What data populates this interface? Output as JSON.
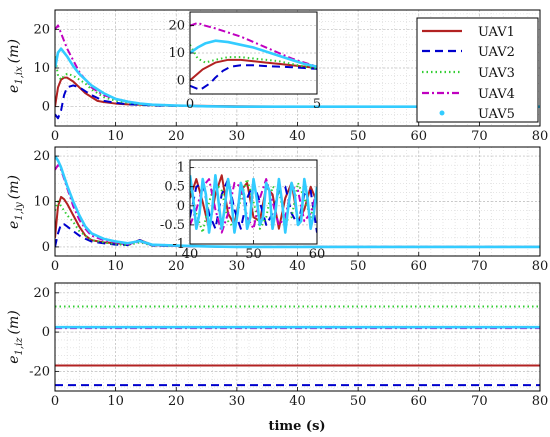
{
  "chart_data": [
    {
      "type": "line",
      "panel": "top",
      "ylabel": "e1,ix (m)",
      "ylabel_main": "e",
      "ylabel_sub": "1,ix",
      "ylabel_unit": "(m)",
      "xlim": [
        0,
        80
      ],
      "ylim": [
        -5,
        25
      ],
      "xticks": [
        0,
        10,
        20,
        30,
        40,
        50,
        60,
        70,
        80
      ],
      "yticks": [
        0,
        10,
        20
      ],
      "grid": true,
      "series": [
        {
          "name": "UAV1",
          "x": [
            0,
            0.5,
            1,
            1.5,
            2,
            3,
            4,
            5,
            6,
            7,
            8,
            10,
            12,
            14,
            16,
            18,
            20,
            25,
            30,
            40,
            50,
            60,
            70,
            80
          ],
          "y": [
            0,
            5,
            7,
            7.5,
            7.5,
            6.5,
            5,
            3.5,
            2.5,
            1.5,
            1.2,
            0.8,
            0.6,
            0.5,
            0.4,
            0.3,
            0.3,
            0.2,
            0.1,
            0,
            0,
            0,
            0,
            0
          ]
        },
        {
          "name": "UAV2",
          "x": [
            0,
            0.5,
            1,
            1.5,
            2,
            3,
            4,
            5,
            6,
            8,
            10,
            12,
            14,
            16,
            20,
            25,
            30,
            40,
            50,
            60,
            70,
            80
          ],
          "y": [
            -2,
            -3,
            -1,
            3,
            5,
            5.5,
            5,
            4,
            3,
            1.5,
            1,
            0.6,
            0.5,
            0.3,
            0.2,
            0.1,
            0,
            0,
            0,
            0,
            0,
            0
          ]
        },
        {
          "name": "UAV3",
          "x": [
            0,
            0.5,
            1,
            1.5,
            2,
            3,
            4,
            5,
            6,
            8,
            10,
            12,
            14,
            16,
            20,
            25,
            30,
            40,
            50,
            60,
            70,
            80
          ],
          "y": [
            13,
            8,
            7,
            8,
            8.5,
            8,
            7,
            6,
            4.5,
            2.5,
            1.5,
            1,
            0.6,
            0.4,
            0.2,
            0.1,
            0,
            0,
            0,
            0,
            0,
            0
          ]
        },
        {
          "name": "UAV4",
          "x": [
            0,
            0.5,
            1,
            1.5,
            2,
            3,
            4,
            5,
            6,
            8,
            10,
            12,
            14,
            16,
            20,
            25,
            30,
            40,
            50,
            60,
            70,
            80
          ],
          "y": [
            20,
            21,
            19,
            17,
            15,
            12,
            9,
            7,
            5,
            3,
            2,
            1.3,
            0.8,
            0.5,
            0.3,
            0.1,
            0,
            0,
            0,
            0,
            0,
            0
          ]
        },
        {
          "name": "UAV5",
          "x": [
            0,
            0.5,
            1,
            1.5,
            2,
            3,
            4,
            5,
            6,
            8,
            10,
            12,
            14,
            16,
            20,
            25,
            30,
            40,
            50,
            60,
            70,
            80
          ],
          "y": [
            10,
            14,
            15,
            14,
            13,
            10.5,
            8.5,
            7,
            5.5,
            3.5,
            2,
            1.3,
            0.8,
            0.5,
            0.3,
            0.1,
            0,
            0,
            0,
            0,
            0,
            0
          ]
        }
      ],
      "inset": {
        "xlim": [
          0,
          5
        ],
        "ylim": [
          -5,
          25
        ],
        "xticks": [
          0,
          5
        ],
        "yticks": [
          0,
          10,
          20
        ],
        "series": [
          {
            "name": "UAV1",
            "x": [
              0,
              0.5,
              1,
              1.5,
              2,
              2.5,
              3,
              3.5,
              4,
              4.5,
              5
            ],
            "y": [
              0,
              4,
              6.5,
              7.5,
              7.5,
              7,
              6.5,
              6,
              5.5,
              5,
              4.5
            ]
          },
          {
            "name": "UAV2",
            "x": [
              0,
              0.4,
              0.8,
              1,
              1.3,
              1.6,
              2,
              2.5,
              3,
              3.5,
              4,
              4.5,
              5
            ],
            "y": [
              -2,
              -3.5,
              -1,
              1,
              3.5,
              5,
              5.5,
              5.5,
              5.2,
              5,
              4.8,
              4.5,
              4.2
            ]
          },
          {
            "name": "UAV3",
            "x": [
              0,
              0.3,
              0.6,
              1,
              1.5,
              2,
              2.5,
              3,
              3.5,
              4,
              4.5,
              5
            ],
            "y": [
              13,
              8,
              6.5,
              7.5,
              8.5,
              8.5,
              8,
              7.5,
              7,
              6,
              5,
              4.3
            ]
          },
          {
            "name": "UAV4",
            "x": [
              0,
              0.3,
              0.6,
              1,
              1.5,
              2,
              2.5,
              3,
              3.5,
              4,
              4.5,
              5
            ],
            "y": [
              20,
              21,
              20,
              19,
              17.5,
              16,
              14,
              12,
              10,
              8,
              6.5,
              5
            ]
          },
          {
            "name": "UAV5",
            "x": [
              0,
              0.3,
              0.6,
              1,
              1.5,
              2,
              2.5,
              3,
              3.5,
              4,
              4.5,
              5
            ],
            "y": [
              10,
              12,
              13.5,
              14.5,
              14,
              13,
              12,
              10.5,
              9,
              7.5,
              6,
              5
            ]
          }
        ]
      },
      "legend": {
        "placement": "top-right",
        "entries": [
          "UAV1",
          "UAV2",
          "UAV3",
          "UAV4",
          "UAV5"
        ]
      }
    },
    {
      "type": "line",
      "panel": "middle",
      "ylabel": "e1,iy (m)",
      "ylabel_main": "e",
      "ylabel_sub": "1,iy",
      "ylabel_unit": "(m)",
      "xlim": [
        0,
        80
      ],
      "ylim": [
        -2,
        22
      ],
      "xticks": [
        0,
        10,
        20,
        30,
        40,
        50,
        60,
        70,
        80
      ],
      "yticks": [
        0,
        10,
        20
      ],
      "grid": true,
      "series": [
        {
          "name": "UAV1",
          "x": [
            0,
            0.5,
            1,
            1.5,
            2,
            3,
            4,
            5,
            6,
            8,
            10,
            12,
            14,
            16,
            18,
            20,
            25,
            30,
            40,
            50,
            60,
            70,
            80
          ],
          "y": [
            2,
            9,
            11,
            10.5,
            9.5,
            7,
            4.5,
            2.5,
            1.5,
            1,
            0.8,
            0.6,
            1.5,
            0.5,
            0.3,
            0.2,
            0.1,
            0,
            0,
            0,
            0,
            0,
            0
          ]
        },
        {
          "name": "UAV2",
          "x": [
            0,
            0.5,
            1,
            1.5,
            2,
            3,
            4,
            5,
            6,
            8,
            10,
            12,
            14,
            16,
            20,
            25,
            30,
            40,
            50,
            60,
            70,
            80
          ],
          "y": [
            0,
            3,
            5,
            5,
            4.5,
            3.5,
            2.5,
            1.8,
            1.2,
            0.8,
            0.5,
            0.4,
            1.5,
            0.3,
            0.2,
            0.1,
            0,
            0,
            0,
            0,
            0,
            0
          ]
        },
        {
          "name": "UAV3",
          "x": [
            0,
            0.5,
            1,
            1.5,
            2,
            3,
            4,
            5,
            6,
            8,
            10,
            12,
            14,
            16,
            20,
            25,
            30,
            40,
            50,
            60,
            70,
            80
          ],
          "y": [
            8,
            10,
            9,
            8,
            7,
            5.5,
            3.5,
            2.5,
            1.5,
            1,
            0.6,
            0.4,
            1,
            0.3,
            0.2,
            0.1,
            0,
            0,
            0,
            0,
            0,
            0
          ]
        },
        {
          "name": "UAV4",
          "x": [
            0,
            0.5,
            1,
            1.5,
            2,
            3,
            4,
            5,
            6,
            8,
            10,
            12,
            14,
            16,
            20,
            25,
            30,
            40,
            50,
            60,
            70,
            80
          ],
          "y": [
            17,
            18,
            17,
            15,
            13,
            9,
            6,
            4,
            2.5,
            1.5,
            1,
            0.6,
            1.2,
            0.4,
            0.2,
            0.1,
            0,
            0,
            0,
            0,
            0,
            0
          ]
        },
        {
          "name": "UAV5",
          "x": [
            0,
            0.5,
            1,
            1.5,
            2,
            3,
            4,
            5,
            6,
            8,
            10,
            12,
            14,
            16,
            20,
            25,
            30,
            40,
            50,
            60,
            70,
            80
          ],
          "y": [
            20,
            19,
            17.5,
            15.5,
            13.5,
            10,
            7,
            4.5,
            3,
            1.8,
            1.2,
            0.8,
            1.3,
            0.5,
            0.3,
            0.1,
            0,
            0,
            0,
            0,
            0,
            0
          ]
        }
      ],
      "inset": {
        "xlim": [
          40,
          60
        ],
        "ylim": [
          -1,
          1.2
        ],
        "xticks": [
          40,
          50,
          60
        ],
        "yticks": [
          -1,
          -0.5,
          0,
          0.5,
          1
        ],
        "series": [
          {
            "name": "UAV1",
            "x": [
              40,
              41,
              42,
              43,
              44,
              45,
              46,
              47,
              48,
              49,
              50,
              51,
              52,
              53,
              54,
              55,
              56,
              57,
              58,
              59,
              60
            ],
            "y": [
              0.2,
              0.7,
              0.1,
              -0.6,
              0.3,
              0.8,
              -0.2,
              -0.5,
              0.4,
              0.6,
              -0.3,
              -0.4,
              0.5,
              0.3,
              -0.6,
              0.2,
              0.6,
              -0.4,
              -0.1,
              0.5,
              0.1
            ]
          },
          {
            "name": "UAV2",
            "x": [
              40,
              41,
              42,
              43,
              44,
              45,
              46,
              47,
              48,
              49,
              50,
              51,
              52,
              53,
              54,
              55,
              56,
              57,
              58,
              59,
              60
            ],
            "y": [
              -0.3,
              0.5,
              0.6,
              -0.2,
              -0.6,
              0.3,
              0.7,
              -0.1,
              -0.6,
              0.2,
              0.6,
              0.1,
              -0.5,
              -0.2,
              0.4,
              0.5,
              -0.2,
              -0.5,
              0.3,
              0.4,
              -0.7
            ]
          },
          {
            "name": "UAV3",
            "x": [
              40,
              41,
              42,
              43,
              44,
              45,
              46,
              47,
              48,
              49,
              50,
              51,
              52,
              53,
              54,
              55,
              56,
              57,
              58,
              59,
              60
            ],
            "y": [
              0.5,
              -0.2,
              -0.7,
              0.1,
              0.6,
              0.4,
              -0.4,
              -0.6,
              0.2,
              0.7,
              0.1,
              -0.6,
              -0.3,
              0.5,
              0.4,
              -0.4,
              -0.3,
              0.6,
              0.2,
              -0.3,
              0.3
            ]
          },
          {
            "name": "UAV4",
            "x": [
              40,
              41,
              42,
              43,
              44,
              45,
              46,
              47,
              48,
              49,
              50,
              51,
              52,
              53,
              54,
              55,
              56,
              57,
              58,
              59,
              60
            ],
            "y": [
              -0.5,
              -0.1,
              0.5,
              0.7,
              -0.1,
              -0.7,
              -0.2,
              0.6,
              0.5,
              -0.3,
              -0.6,
              0.2,
              0.7,
              0.1,
              -0.5,
              -0.3,
              0.5,
              0.4,
              -0.4,
              -0.2,
              0.4
            ]
          },
          {
            "name": "UAV5",
            "x": [
              40,
              40.5,
              41,
              41.5,
              42,
              42.5,
              43,
              43.5,
              44,
              44.5,
              45,
              45.5,
              46,
              46.5,
              47,
              47.5,
              48,
              48.5,
              49,
              49.5,
              50,
              50.5,
              51,
              51.5,
              52,
              52.5,
              53,
              53.5,
              54,
              54.5,
              55,
              55.5,
              56,
              56.5,
              57,
              57.5,
              58,
              58.5,
              59,
              59.5,
              60
            ],
            "y": [
              0.8,
              0.2,
              -0.6,
              -0.2,
              0.7,
              0.3,
              -0.7,
              -0.1,
              0.8,
              0.1,
              -0.6,
              0,
              0.7,
              0.2,
              -0.7,
              -0.2,
              0.6,
              0.3,
              -0.6,
              -0.3,
              0.7,
              0.2,
              -0.5,
              -0.3,
              0.6,
              0.4,
              -0.6,
              -0.1,
              0.7,
              0.1,
              -0.7,
              0,
              0.6,
              0.3,
              -0.5,
              -0.4,
              0.7,
              0.2,
              -0.6,
              -0.2,
              0.5
            ]
          }
        ]
      }
    },
    {
      "type": "line",
      "panel": "bottom",
      "ylabel": "e1,iz (m)",
      "ylabel_main": "e",
      "ylabel_sub": "1,iz",
      "ylabel_unit": "(m)",
      "xlabel": "time (s)",
      "xlim": [
        0,
        80
      ],
      "ylim": [
        -30,
        25
      ],
      "xticks": [
        0,
        10,
        20,
        30,
        40,
        50,
        60,
        70,
        80
      ],
      "yticks": [
        -20,
        0,
        20
      ],
      "grid": true,
      "series": [
        {
          "name": "UAV1",
          "x": [
            0,
            80
          ],
          "y": [
            -17,
            -17
          ]
        },
        {
          "name": "UAV2",
          "x": [
            0,
            80
          ],
          "y": [
            -27,
            -27
          ]
        },
        {
          "name": "UAV3",
          "x": [
            0,
            80
          ],
          "y": [
            13,
            13
          ]
        },
        {
          "name": "UAV4",
          "x": [
            0,
            80
          ],
          "y": [
            2,
            2
          ]
        },
        {
          "name": "UAV5",
          "x": [
            0,
            80
          ],
          "y": [
            2.5,
            2.5
          ]
        }
      ]
    }
  ],
  "style": {
    "UAV1": {
      "color": "#b22222",
      "dash": ""
    },
    "UAV2": {
      "color": "#0000cd",
      "dash": "8,5"
    },
    "UAV3": {
      "color": "#32cd32",
      "dash": "1.5,3"
    },
    "UAV4": {
      "color": "#c000c0",
      "dash": "7,3,2,3"
    },
    "UAV5": {
      "color": "#33ccff",
      "dash": ""
    }
  }
}
